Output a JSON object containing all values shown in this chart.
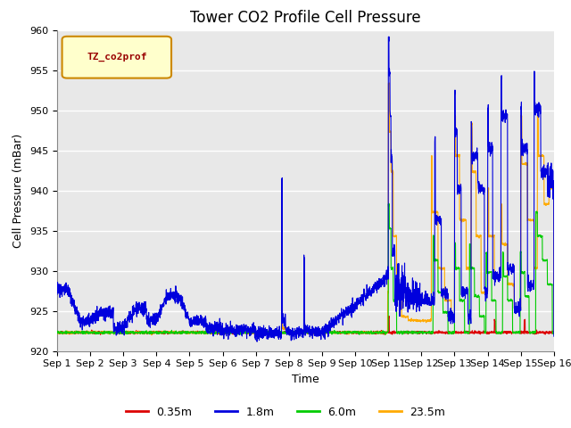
{
  "title": "Tower CO2 Profile Cell Pressure",
  "xlabel": "Time",
  "ylabel": "Cell Pressure (mBar)",
  "ylim": [
    920,
    960
  ],
  "xlim": [
    0,
    15
  ],
  "xtick_labels": [
    "Sep 1",
    "Sep 2",
    "Sep 3",
    "Sep 4",
    "Sep 5",
    "Sep 6",
    "Sep 7",
    "Sep 8",
    "Sep 9",
    "Sep 10",
    "Sep 11",
    "Sep 12",
    "Sep 13",
    "Sep 14",
    "Sep 15",
    "Sep 16"
  ],
  "ytick_labels": [
    "920",
    "925",
    "930",
    "935",
    "940",
    "945",
    "950",
    "955",
    "960"
  ],
  "ytick_values": [
    920,
    925,
    930,
    935,
    940,
    945,
    950,
    955,
    960
  ],
  "legend_label": "TZ_co2prof",
  "series_labels": [
    "0.35m",
    "1.8m",
    "6.0m",
    "23.5m"
  ],
  "series_colors": [
    "#dd0000",
    "#0000dd",
    "#00cc00",
    "#ffaa00"
  ],
  "background_color": "#e8e8e8",
  "fig_background": "#ffffff",
  "title_fontsize": 12,
  "axis_fontsize": 9,
  "tick_fontsize": 8
}
